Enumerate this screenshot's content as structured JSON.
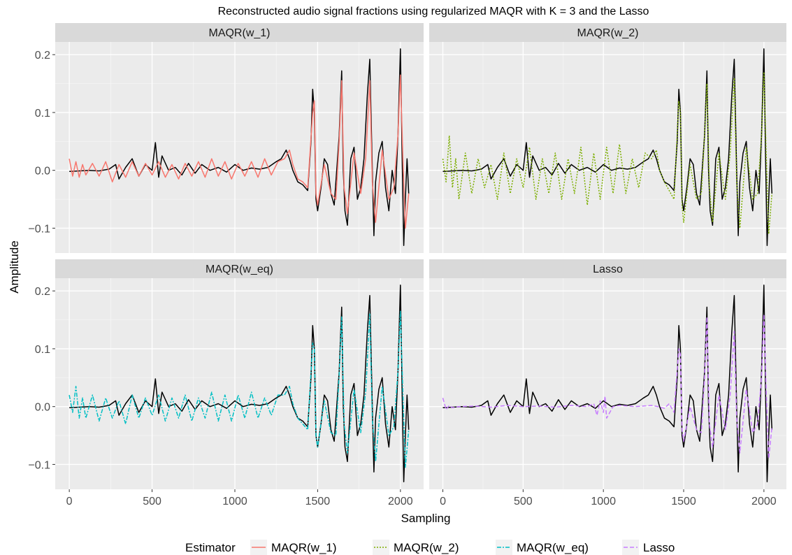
{
  "chart_data": {
    "type": "line",
    "title": "Reconstructed audio signal fractions using regularized MAQR with K =  3 and the Lasso",
    "xlabel": "Sampling",
    "ylabel": "Amplitude",
    "xlim": [
      -85,
      2140
    ],
    "ylim": [
      -0.143,
      0.222
    ],
    "x_ticks": [
      0,
      500,
      1000,
      1500,
      2000
    ],
    "x_tick_labels": [
      "0",
      "500",
      "1000",
      "1500",
      "2000"
    ],
    "y_ticks": [
      -0.1,
      0.0,
      0.1,
      0.2
    ],
    "y_tick_labels": [
      "−0.1",
      "0.0",
      "0.1",
      "0.2"
    ],
    "grid": true,
    "legend": {
      "title": "Estimator",
      "position": "bottom",
      "entries": [
        {
          "label": "MAQR(w_1)",
          "color": "#F8766D",
          "dash": "solid"
        },
        {
          "label": "MAQR(w_2)",
          "color": "#7CAE00",
          "dash": "dotted"
        },
        {
          "label": "MAQR(w_eq)",
          "color": "#00BFC4",
          "dash": "dashdot"
        },
        {
          "label": "Lasso",
          "color": "#C77CFF",
          "dash": "dashed"
        }
      ]
    },
    "panels": [
      {
        "strip": "MAQR(w_1)",
        "estimator_color": "#F8766D"
      },
      {
        "strip": "MAQR(w_2)",
        "estimator_color": "#7CAE00"
      },
      {
        "strip": "MAQR(w_eq)",
        "estimator_color": "#00BFC4"
      },
      {
        "strip": "Lasso",
        "estimator_color": "#C77CFF"
      }
    ],
    "true_signal": {
      "color": "#000000",
      "x": [
        0,
        60,
        120,
        180,
        240,
        280,
        300,
        340,
        380,
        420,
        460,
        500,
        520,
        540,
        560,
        600,
        640,
        680,
        720,
        760,
        800,
        850,
        900,
        950,
        1000,
        1050,
        1100,
        1150,
        1200,
        1250,
        1280,
        1310,
        1330,
        1350,
        1380,
        1410,
        1440,
        1460,
        1470,
        1480,
        1490,
        1500,
        1520,
        1540,
        1560,
        1580,
        1600,
        1610,
        1630,
        1645,
        1655,
        1665,
        1680,
        1700,
        1720,
        1740,
        1760,
        1780,
        1800,
        1815,
        1830,
        1840,
        1850,
        1870,
        1890,
        1910,
        1930,
        1950,
        1970,
        1985,
        2000,
        2010,
        2020,
        2030,
        2040,
        2050
      ],
      "y": [
        -0.002,
        -0.001,
        0.0,
        -0.001,
        0.002,
        0.01,
        -0.015,
        0.005,
        0.02,
        -0.01,
        0.01,
        0.0,
        0.048,
        -0.012,
        0.025,
        0.0,
        0.005,
        -0.008,
        0.012,
        -0.005,
        0.01,
        0.0,
        0.005,
        -0.003,
        0.01,
        0.0,
        0.004,
        0.002,
        0.005,
        0.015,
        0.02,
        0.035,
        0.02,
        0.0,
        -0.02,
        -0.025,
        -0.035,
        0.05,
        0.14,
        0.1,
        -0.05,
        -0.07,
        -0.03,
        0.02,
        0.01,
        -0.04,
        -0.06,
        -0.02,
        0.06,
        0.172,
        0.0,
        -0.07,
        -0.095,
        0.02,
        0.04,
        -0.05,
        -0.03,
        0.02,
        0.13,
        0.192,
        0.0,
        -0.113,
        -0.02,
        0.03,
        0.05,
        -0.03,
        -0.07,
        0.0,
        -0.04,
        0.06,
        0.21,
        0.03,
        -0.13,
        -0.05,
        0.02,
        -0.04
      ]
    },
    "estimates": [
      {
        "name": "MAQR(w_1)",
        "color": "#F8766D",
        "x": [
          0,
          20,
          40,
          60,
          80,
          100,
          140,
          180,
          220,
          260,
          300,
          340,
          380,
          420,
          460,
          500,
          540,
          580,
          620,
          660,
          700,
          740,
          780,
          820,
          860,
          900,
          940,
          980,
          1020,
          1060,
          1100,
          1140,
          1180,
          1220,
          1260,
          1300,
          1330,
          1350,
          1380,
          1410,
          1440,
          1470,
          1480,
          1490,
          1500,
          1540,
          1580,
          1610,
          1630,
          1645,
          1660,
          1680,
          1720,
          1760,
          1790,
          1815,
          1830,
          1850,
          1890,
          1930,
          1960,
          1985,
          2000,
          2015,
          2030,
          2050
        ],
        "y": [
          0.02,
          -0.01,
          0.015,
          -0.012,
          0.01,
          -0.008,
          0.012,
          -0.01,
          0.015,
          -0.02,
          0.01,
          -0.012,
          0.015,
          -0.01,
          0.012,
          -0.008,
          0.015,
          -0.012,
          0.01,
          -0.015,
          0.012,
          -0.01,
          0.015,
          -0.012,
          0.02,
          -0.01,
          0.015,
          -0.015,
          0.012,
          -0.01,
          0.015,
          -0.012,
          0.02,
          -0.008,
          0.015,
          0.02,
          0.035,
          0.01,
          -0.015,
          -0.02,
          -0.03,
          0.1,
          0.12,
          -0.04,
          -0.06,
          0.01,
          -0.04,
          -0.05,
          0.05,
          0.155,
          -0.03,
          -0.075,
          0.03,
          -0.04,
          0.02,
          0.155,
          -0.02,
          -0.09,
          0.035,
          -0.05,
          -0.03,
          0.06,
          0.165,
          0.02,
          -0.1,
          -0.04
        ]
      },
      {
        "name": "MAQR(w_2)",
        "color": "#7CAE00",
        "x": [
          0,
          20,
          40,
          60,
          80,
          100,
          140,
          180,
          220,
          260,
          300,
          340,
          380,
          420,
          460,
          500,
          540,
          580,
          620,
          660,
          700,
          740,
          780,
          820,
          860,
          900,
          940,
          980,
          1020,
          1060,
          1100,
          1140,
          1180,
          1220,
          1260,
          1300,
          1330,
          1350,
          1380,
          1410,
          1440,
          1470,
          1480,
          1490,
          1500,
          1540,
          1580,
          1610,
          1630,
          1645,
          1660,
          1680,
          1720,
          1760,
          1790,
          1815,
          1830,
          1850,
          1890,
          1930,
          1960,
          1985,
          2000,
          2015,
          2030,
          2050
        ],
        "y": [
          0.02,
          -0.02,
          0.06,
          -0.03,
          0.02,
          -0.05,
          0.03,
          -0.04,
          0.02,
          -0.03,
          0.01,
          -0.05,
          0.03,
          -0.04,
          0.02,
          -0.03,
          0.04,
          -0.05,
          0.02,
          -0.04,
          0.03,
          -0.05,
          0.02,
          -0.04,
          0.04,
          -0.06,
          0.03,
          -0.05,
          0.04,
          -0.04,
          0.045,
          -0.04,
          0.02,
          -0.03,
          0.03,
          0.02,
          0.035,
          0.0,
          -0.02,
          -0.035,
          -0.05,
          0.12,
          0.1,
          -0.06,
          -0.09,
          0.01,
          -0.05,
          -0.04,
          0.06,
          0.15,
          -0.03,
          -0.09,
          0.03,
          -0.05,
          0.03,
          0.16,
          -0.02,
          -0.1,
          0.04,
          -0.05,
          -0.04,
          0.06,
          0.17,
          0.02,
          -0.11,
          -0.04
        ]
      },
      {
        "name": "MAQR(w_eq)",
        "color": "#00BFC4",
        "x": [
          0,
          20,
          40,
          60,
          80,
          100,
          140,
          180,
          220,
          260,
          300,
          340,
          380,
          420,
          460,
          500,
          540,
          580,
          620,
          660,
          700,
          740,
          780,
          820,
          860,
          900,
          940,
          980,
          1020,
          1060,
          1100,
          1140,
          1180,
          1220,
          1260,
          1300,
          1330,
          1350,
          1380,
          1410,
          1440,
          1470,
          1480,
          1490,
          1500,
          1540,
          1580,
          1610,
          1630,
          1645,
          1660,
          1680,
          1720,
          1760,
          1790,
          1815,
          1830,
          1850,
          1890,
          1930,
          1960,
          1985,
          2000,
          2015,
          2030,
          2050
        ],
        "y": [
          0.02,
          -0.01,
          0.035,
          -0.02,
          0.015,
          -0.02,
          0.02,
          -0.025,
          0.015,
          -0.02,
          0.01,
          -0.03,
          0.02,
          -0.02,
          0.015,
          -0.015,
          0.02,
          -0.025,
          0.015,
          -0.02,
          0.02,
          -0.025,
          0.015,
          -0.02,
          0.025,
          -0.025,
          0.02,
          -0.025,
          0.02,
          -0.02,
          0.025,
          -0.02,
          0.015,
          -0.015,
          0.02,
          0.02,
          0.035,
          0.005,
          -0.02,
          -0.03,
          -0.04,
          0.11,
          0.1,
          -0.05,
          -0.07,
          0.01,
          -0.045,
          -0.05,
          0.055,
          0.155,
          -0.03,
          -0.08,
          0.03,
          -0.045,
          0.025,
          0.16,
          -0.02,
          -0.095,
          0.035,
          -0.05,
          -0.035,
          0.06,
          0.165,
          0.02,
          -0.105,
          -0.04
        ]
      },
      {
        "name": "Lasso",
        "color": "#C77CFF",
        "x": [
          0,
          20,
          40,
          60,
          100,
          200,
          300,
          400,
          500,
          600,
          700,
          800,
          900,
          940,
          960,
          980,
          1000,
          1010,
          1020,
          1060,
          1100,
          1200,
          1300,
          1340,
          1380,
          1410,
          1440,
          1470,
          1480,
          1490,
          1500,
          1540,
          1580,
          1610,
          1630,
          1645,
          1660,
          1680,
          1720,
          1760,
          1790,
          1815,
          1830,
          1850,
          1890,
          1930,
          1960,
          1985,
          2000,
          2015,
          2030,
          2050
        ],
        "y": [
          0.015,
          -0.005,
          0.002,
          -0.002,
          0.0,
          0.001,
          -0.001,
          0.002,
          0.0,
          0.001,
          -0.001,
          0.002,
          0.0,
          0.005,
          -0.015,
          0.01,
          -0.01,
          0.018,
          -0.02,
          0.0,
          0.002,
          0.0,
          0.002,
          0.0,
          -0.003,
          0.005,
          -0.01,
          0.1,
          0.09,
          -0.04,
          -0.06,
          0.0,
          -0.04,
          -0.045,
          0.05,
          0.155,
          -0.03,
          -0.07,
          0.02,
          -0.04,
          0.02,
          0.13,
          -0.02,
          -0.08,
          0.03,
          -0.045,
          -0.03,
          0.05,
          0.16,
          0.02,
          -0.09,
          -0.035
        ]
      }
    ]
  }
}
